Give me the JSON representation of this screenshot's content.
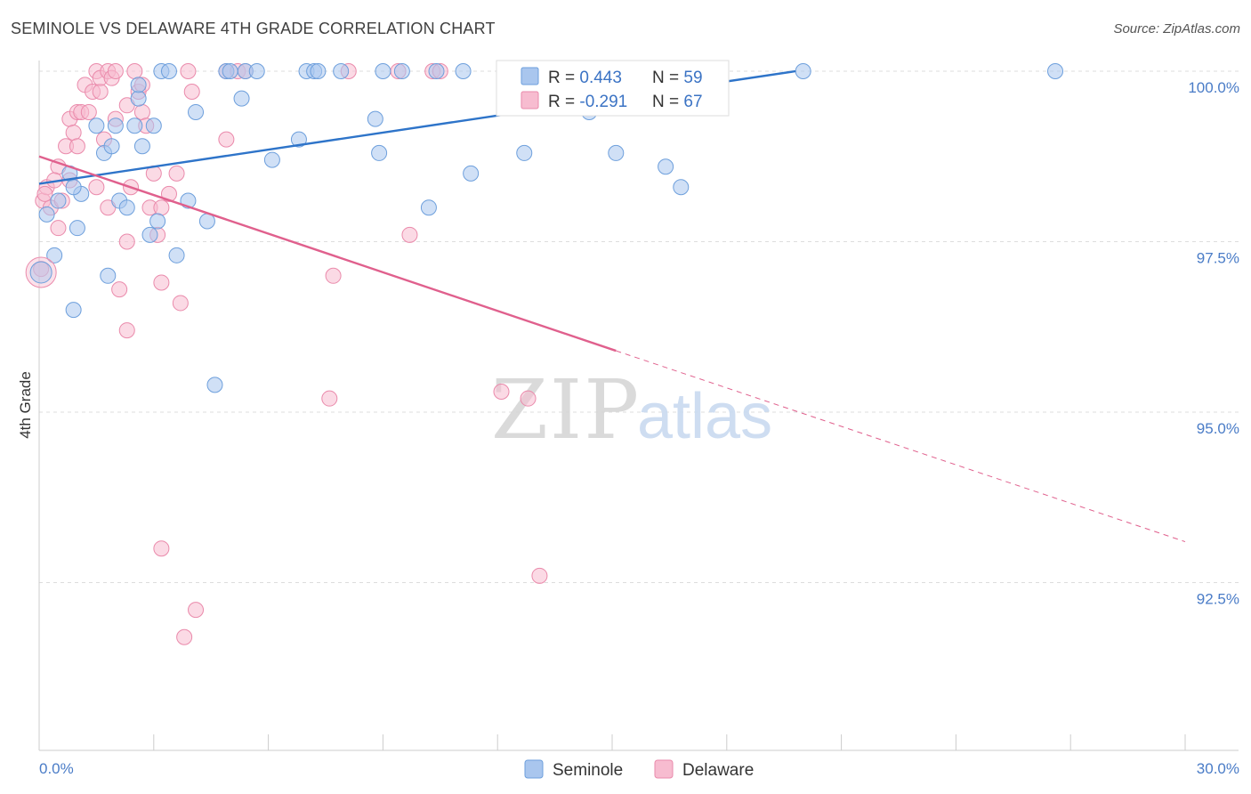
{
  "title": "SEMINOLE VS DELAWARE 4TH GRADE CORRELATION CHART",
  "source": "Source: ZipAtlas.com",
  "watermark": {
    "zip": "ZIP",
    "atlas": "atlas"
  },
  "colors": {
    "seminole_fill": "#a9c6ee",
    "seminole_stroke": "#6d9fdc",
    "seminole_line": "#2e74c9",
    "delaware_fill": "#f7bcd0",
    "delaware_stroke": "#ea8aab",
    "delaware_line": "#e0608d",
    "value_text": "#3b73c4",
    "grid": "#dddddd"
  },
  "legend_box": {
    "seminole": {
      "r_label": "R = ",
      "r_value": "0.443",
      "n_label": "N = ",
      "n_value": "59"
    },
    "delaware": {
      "r_label": "R = ",
      "r_value": "-0.291",
      "n_label": "N = ",
      "n_value": "67"
    }
  },
  "chart_data": {
    "type": "scatter",
    "title": "SEMINOLE VS DELAWARE 4TH GRADE CORRELATION CHART",
    "xlabel": "",
    "ylabel": "4th Grade",
    "xlim": [
      0,
      30
    ],
    "ylim": [
      90.5,
      100.3
    ],
    "x_tick_labels": [
      "0.0%",
      "30.0%"
    ],
    "y_ticks": [
      92.5,
      95.0,
      97.5,
      100.0
    ],
    "y_tick_labels": [
      "92.5%",
      "95.0%",
      "97.5%",
      "100.0%"
    ],
    "grid": "horizontal dashed",
    "legend": "bottom-center",
    "series": [
      {
        "name": "Seminole",
        "r": 0.443,
        "n": 59,
        "trend": {
          "x": [
            0.0,
            19.8
          ],
          "y": [
            98.35,
            100.0
          ],
          "dashed_from": null
        },
        "points": [
          [
            0.2,
            97.9
          ],
          [
            0.4,
            97.3
          ],
          [
            0.5,
            98.1
          ],
          [
            0.8,
            98.5
          ],
          [
            1.0,
            97.7
          ],
          [
            1.1,
            98.2
          ],
          [
            0.9,
            98.3
          ],
          [
            0.9,
            96.5
          ],
          [
            1.5,
            99.2
          ],
          [
            1.7,
            98.8
          ],
          [
            1.9,
            98.9
          ],
          [
            2.0,
            99.2
          ],
          [
            1.8,
            97.0
          ],
          [
            2.1,
            98.1
          ],
          [
            2.3,
            98.0
          ],
          [
            2.5,
            99.2
          ],
          [
            2.6,
            99.6
          ],
          [
            2.6,
            99.8
          ],
          [
            2.7,
            98.9
          ],
          [
            2.9,
            97.6
          ],
          [
            3.0,
            99.2
          ],
          [
            3.1,
            97.8
          ],
          [
            3.2,
            100.0
          ],
          [
            3.4,
            100.0
          ],
          [
            3.6,
            97.3
          ],
          [
            3.9,
            98.1
          ],
          [
            4.1,
            99.4
          ],
          [
            4.4,
            97.8
          ],
          [
            4.6,
            95.4
          ],
          [
            4.9,
            100.0
          ],
          [
            5.0,
            100.0
          ],
          [
            5.3,
            99.6
          ],
          [
            5.4,
            100.0
          ],
          [
            5.7,
            100.0
          ],
          [
            6.1,
            98.7
          ],
          [
            6.8,
            99.0
          ],
          [
            7.0,
            100.0
          ],
          [
            7.2,
            100.0
          ],
          [
            7.3,
            100.0
          ],
          [
            7.9,
            100.0
          ],
          [
            8.8,
            99.3
          ],
          [
            8.9,
            98.8
          ],
          [
            9.0,
            100.0
          ],
          [
            9.5,
            100.0
          ],
          [
            10.2,
            98.0
          ],
          [
            10.4,
            100.0
          ],
          [
            11.1,
            100.0
          ],
          [
            11.3,
            98.5
          ],
          [
            12.7,
            98.8
          ],
          [
            13.0,
            100.0
          ],
          [
            14.2,
            100.0
          ],
          [
            14.4,
            99.4
          ],
          [
            15.1,
            98.8
          ],
          [
            15.6,
            100.0
          ],
          [
            16.4,
            98.6
          ],
          [
            16.8,
            98.3
          ],
          [
            17.1,
            100.0
          ],
          [
            20.0,
            100.0
          ],
          [
            26.6,
            100.0
          ]
        ]
      },
      {
        "name": "Delaware",
        "r": -0.291,
        "n": 67,
        "trend": {
          "x": [
            0.0,
            15.1,
            30.0
          ],
          "y": [
            98.75,
            95.9,
            93.1
          ],
          "dashed_from": 15.1
        },
        "points": [
          [
            0.1,
            98.1
          ],
          [
            0.2,
            98.3
          ],
          [
            0.3,
            98.0
          ],
          [
            0.5,
            97.7
          ],
          [
            0.5,
            98.6
          ],
          [
            0.6,
            98.1
          ],
          [
            0.7,
            98.9
          ],
          [
            0.8,
            99.3
          ],
          [
            0.8,
            98.4
          ],
          [
            0.9,
            99.1
          ],
          [
            1.0,
            98.9
          ],
          [
            1.0,
            99.4
          ],
          [
            1.1,
            99.4
          ],
          [
            1.2,
            99.8
          ],
          [
            1.3,
            99.4
          ],
          [
            1.4,
            99.7
          ],
          [
            1.5,
            100.0
          ],
          [
            1.5,
            98.3
          ],
          [
            1.6,
            99.7
          ],
          [
            1.6,
            99.9
          ],
          [
            1.7,
            99.0
          ],
          [
            1.8,
            98.0
          ],
          [
            1.8,
            100.0
          ],
          [
            1.9,
            99.9
          ],
          [
            2.0,
            99.3
          ],
          [
            2.0,
            100.0
          ],
          [
            2.1,
            96.8
          ],
          [
            2.3,
            99.5
          ],
          [
            2.3,
            97.5
          ],
          [
            2.3,
            96.2
          ],
          [
            2.4,
            98.3
          ],
          [
            2.5,
            100.0
          ],
          [
            2.6,
            99.7
          ],
          [
            2.7,
            99.4
          ],
          [
            2.7,
            99.8
          ],
          [
            2.8,
            99.2
          ],
          [
            2.9,
            98.0
          ],
          [
            3.0,
            98.5
          ],
          [
            3.1,
            97.6
          ],
          [
            3.2,
            98.0
          ],
          [
            3.2,
            96.9
          ],
          [
            3.2,
            93.0
          ],
          [
            3.4,
            98.2
          ],
          [
            3.6,
            98.5
          ],
          [
            3.7,
            96.6
          ],
          [
            3.8,
            91.7
          ],
          [
            3.9,
            100.0
          ],
          [
            4.0,
            99.7
          ],
          [
            4.1,
            92.1
          ],
          [
            4.9,
            100.0
          ],
          [
            4.9,
            99.0
          ],
          [
            5.2,
            100.0
          ],
          [
            5.4,
            100.0
          ],
          [
            7.7,
            97.0
          ],
          [
            7.6,
            95.2
          ],
          [
            8.1,
            100.0
          ],
          [
            9.4,
            100.0
          ],
          [
            9.7,
            97.6
          ],
          [
            10.3,
            100.0
          ],
          [
            10.5,
            100.0
          ],
          [
            12.1,
            95.3
          ],
          [
            12.6,
            100.0
          ],
          [
            12.8,
            95.2
          ],
          [
            13.1,
            92.6
          ],
          [
            0.05,
            97.1
          ],
          [
            0.15,
            98.2
          ],
          [
            0.4,
            98.4
          ]
        ]
      }
    ]
  }
}
